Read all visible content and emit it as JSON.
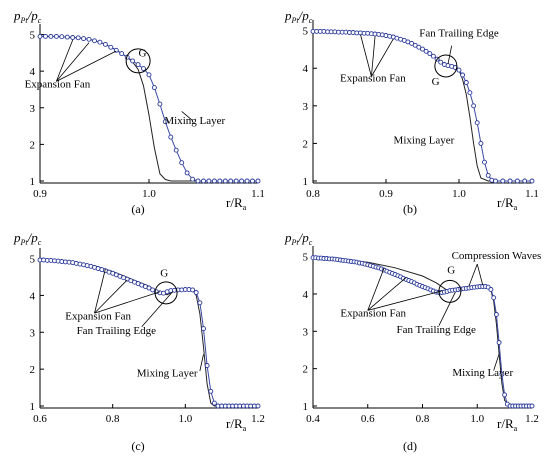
{
  "figure": {
    "y_label": {
      "p1": "p",
      "s1": "Pt",
      "slash": "/",
      "p2": "p",
      "s2": "c"
    },
    "x_label": {
      "r": "r/R",
      "s": "a"
    }
  },
  "chart_data": [
    {
      "id": "a",
      "type": "line",
      "panel_label": "(a)",
      "xlim": [
        0.9,
        1.1
      ],
      "ylim": [
        1,
        5
      ],
      "xticks": [
        "0.9",
        "1.0",
        "1.1"
      ],
      "xtick_values": [
        0.9,
        1.0,
        1.1
      ],
      "yticks": [
        "1",
        "2",
        "3",
        "4",
        "5"
      ],
      "ytick_values": [
        1,
        2,
        3,
        4,
        5
      ],
      "series": [
        {
          "style": "solid",
          "x": [
            0.9,
            0.92,
            0.94,
            0.95,
            0.96,
            0.97,
            0.98,
            0.985,
            0.99,
            0.995,
            1.0,
            1.005,
            1.01,
            1.015,
            1.02,
            1.03,
            1.05,
            1.1
          ],
          "y": [
            4.95,
            4.94,
            4.9,
            4.84,
            4.73,
            4.58,
            4.38,
            4.25,
            4.05,
            3.6,
            2.8,
            1.9,
            1.2,
            1.04,
            1.0,
            1.0,
            1.0,
            1.0
          ]
        },
        {
          "style": "markers",
          "x": [
            0.9,
            0.905,
            0.91,
            0.915,
            0.92,
            0.925,
            0.93,
            0.935,
            0.94,
            0.945,
            0.95,
            0.955,
            0.96,
            0.965,
            0.97,
            0.975,
            0.98,
            0.985,
            0.99,
            0.995,
            1.0,
            1.005,
            1.01,
            1.015,
            1.02,
            1.025,
            1.03,
            1.035,
            1.04,
            1.045,
            1.05,
            1.055,
            1.06,
            1.065,
            1.07,
            1.075,
            1.08,
            1.085,
            1.09,
            1.095,
            1.1
          ],
          "y": [
            4.95,
            4.95,
            4.95,
            4.95,
            4.94,
            4.93,
            4.92,
            4.91,
            4.89,
            4.87,
            4.83,
            4.79,
            4.73,
            4.65,
            4.57,
            4.48,
            4.38,
            4.28,
            4.18,
            4.07,
            3.9,
            3.55,
            3.1,
            2.62,
            2.2,
            1.84,
            1.5,
            1.22,
            1.05,
            1.0,
            1.0,
            1.0,
            1.0,
            1.0,
            1.0,
            1.0,
            1.0,
            1.0,
            1.0,
            1.0,
            1.0
          ]
        }
      ],
      "annotations": [
        {
          "text": "Expansion Fan",
          "x": 0.916,
          "y": 3.55
        },
        {
          "text": "Mixing Layer",
          "x": 1.042,
          "y": 2.55
        },
        {
          "text": "G",
          "x": 0.994,
          "y": 4.4
        }
      ]
    },
    {
      "id": "b",
      "type": "line",
      "panel_label": "(b)",
      "xlim": [
        0.8,
        1.1
      ],
      "ylim": [
        1,
        5
      ],
      "xticks": [
        "0.8",
        "0.9",
        "1.0",
        "1.1"
      ],
      "xtick_values": [
        0.8,
        0.9,
        1.0,
        1.1
      ],
      "yticks": [
        "1",
        "2",
        "3",
        "4",
        "5"
      ],
      "ytick_values": [
        1,
        2,
        3,
        4,
        5
      ],
      "series": [
        {
          "style": "solid",
          "x": [
            0.8,
            0.85,
            0.88,
            0.9,
            0.92,
            0.94,
            0.96,
            0.98,
            0.99,
            1.0,
            1.005,
            1.01,
            1.015,
            1.02,
            1.025,
            1.03,
            1.04,
            1.1
          ],
          "y": [
            4.98,
            4.96,
            4.93,
            4.88,
            4.78,
            4.62,
            4.4,
            4.12,
            4.05,
            3.95,
            3.7,
            3.3,
            2.7,
            2.0,
            1.4,
            1.08,
            1.0,
            1.0
          ]
        },
        {
          "style": "markers",
          "x": [
            0.8,
            0.805,
            0.81,
            0.815,
            0.82,
            0.825,
            0.83,
            0.835,
            0.84,
            0.845,
            0.85,
            0.855,
            0.86,
            0.865,
            0.87,
            0.875,
            0.88,
            0.885,
            0.89,
            0.895,
            0.9,
            0.905,
            0.91,
            0.915,
            0.92,
            0.925,
            0.93,
            0.935,
            0.94,
            0.945,
            0.95,
            0.955,
            0.96,
            0.965,
            0.97,
            0.975,
            0.98,
            0.985,
            0.99,
            0.995,
            1.0,
            1.005,
            1.01,
            1.015,
            1.02,
            1.025,
            1.03,
            1.035,
            1.04,
            1.045,
            1.05,
            1.06,
            1.07,
            1.08,
            1.09,
            1.1
          ],
          "y": [
            4.98,
            4.98,
            4.98,
            4.98,
            4.97,
            4.97,
            4.97,
            4.96,
            4.96,
            4.96,
            4.95,
            4.95,
            4.94,
            4.94,
            4.93,
            4.93,
            4.92,
            4.91,
            4.9,
            4.89,
            4.87,
            4.85,
            4.83,
            4.8,
            4.77,
            4.74,
            4.7,
            4.66,
            4.61,
            4.56,
            4.51,
            4.45,
            4.39,
            4.32,
            4.24,
            4.16,
            4.1,
            4.07,
            4.05,
            4.02,
            3.95,
            3.82,
            3.62,
            3.35,
            3.0,
            2.55,
            2.0,
            1.5,
            1.15,
            1.02,
            1.0,
            1.0,
            1.0,
            1.0,
            1.0,
            1.0
          ]
        }
      ],
      "annotations": [
        {
          "text": "Fan Trailing Edge",
          "x": 1.0,
          "y": 4.85
        },
        {
          "text": "Expansion Fan",
          "x": 0.882,
          "y": 3.65
        },
        {
          "text": "G",
          "x": 0.968,
          "y": 3.55
        },
        {
          "text": "Mixing Layer",
          "x": 0.952,
          "y": 2.0
        }
      ]
    },
    {
      "id": "c",
      "type": "line",
      "panel_label": "(c)",
      "xlim": [
        0.6,
        1.2
      ],
      "ylim": [
        1,
        5
      ],
      "xticks": [
        "0.6",
        "0.8",
        "1.0",
        "1.2"
      ],
      "xtick_values": [
        0.6,
        0.8,
        1.0,
        1.2
      ],
      "yticks": [
        "1",
        "2",
        "3",
        "4",
        "5"
      ],
      "ytick_values": [
        1,
        2,
        3,
        4,
        5
      ],
      "series": [
        {
          "style": "solid",
          "x": [
            0.6,
            0.65,
            0.7,
            0.75,
            0.8,
            0.85,
            0.9,
            0.93,
            0.95,
            0.97,
            1.0,
            1.02,
            1.03,
            1.04,
            1.05,
            1.06,
            1.07,
            1.08,
            1.1,
            1.2
          ],
          "y": [
            4.96,
            4.94,
            4.9,
            4.8,
            4.65,
            4.45,
            4.25,
            4.05,
            4.02,
            4.12,
            4.15,
            4.15,
            4.0,
            3.5,
            2.6,
            1.6,
            1.08,
            1.0,
            1.0,
            1.0
          ]
        },
        {
          "style": "markers",
          "x": [
            0.6,
            0.61,
            0.62,
            0.63,
            0.64,
            0.65,
            0.66,
            0.67,
            0.68,
            0.69,
            0.7,
            0.71,
            0.72,
            0.73,
            0.74,
            0.75,
            0.76,
            0.77,
            0.78,
            0.79,
            0.8,
            0.81,
            0.82,
            0.83,
            0.84,
            0.85,
            0.86,
            0.87,
            0.88,
            0.89,
            0.9,
            0.91,
            0.92,
            0.93,
            0.94,
            0.95,
            0.96,
            0.97,
            0.98,
            0.99,
            1.0,
            1.01,
            1.02,
            1.03,
            1.04,
            1.05,
            1.06,
            1.07,
            1.08,
            1.09,
            1.1,
            1.11,
            1.12,
            1.13,
            1.14,
            1.15,
            1.16,
            1.17,
            1.18,
            1.19,
            1.2
          ],
          "y": [
            4.96,
            4.96,
            4.95,
            4.95,
            4.94,
            4.93,
            4.92,
            4.91,
            4.9,
            4.89,
            4.87,
            4.85,
            4.83,
            4.81,
            4.79,
            4.76,
            4.73,
            4.7,
            4.67,
            4.63,
            4.6,
            4.56,
            4.52,
            4.48,
            4.44,
            4.4,
            4.36,
            4.32,
            4.28,
            4.24,
            4.2,
            4.15,
            4.1,
            4.07,
            4.06,
            4.1,
            4.13,
            4.14,
            4.15,
            4.15,
            4.16,
            4.16,
            4.15,
            4.08,
            3.8,
            3.1,
            2.1,
            1.4,
            1.08,
            1.0,
            1.0,
            1.0,
            1.0,
            1.0,
            1.0,
            1.0,
            1.0,
            1.0,
            1.0,
            1.0,
            1.0
          ]
        }
      ],
      "annotations": [
        {
          "text": "G",
          "x": 0.942,
          "y": 4.52
        },
        {
          "text": "Expansion Fan",
          "x": 0.76,
          "y": 3.35
        },
        {
          "text": "Fan Trailing Edge",
          "x": 0.81,
          "y": 2.95
        },
        {
          "text": "Mixing Layer",
          "x": 0.95,
          "y": 1.8
        }
      ]
    },
    {
      "id": "d",
      "type": "line",
      "panel_label": "(d)",
      "xlim": [
        0.4,
        1.2
      ],
      "ylim": [
        1,
        5
      ],
      "xticks": [
        "0.4",
        "0.6",
        "0.8",
        "1.0",
        "1.2"
      ],
      "xtick_values": [
        0.4,
        0.6,
        0.8,
        1.0,
        1.2
      ],
      "yticks": [
        "1",
        "2",
        "3",
        "4",
        "5"
      ],
      "ytick_values": [
        1,
        2,
        3,
        4,
        5
      ],
      "series": [
        {
          "style": "solid",
          "x": [
            0.4,
            0.5,
            0.6,
            0.7,
            0.8,
            0.85,
            0.88,
            0.9,
            0.93,
            0.96,
            1.0,
            1.03,
            1.05,
            1.06,
            1.07,
            1.08,
            1.09,
            1.1,
            1.12,
            1.2
          ],
          "y": [
            4.97,
            4.93,
            4.85,
            4.7,
            4.48,
            4.3,
            4.15,
            4.05,
            4.1,
            4.15,
            4.18,
            4.2,
            4.1,
            3.8,
            3.2,
            2.4,
            1.6,
            1.15,
            1.0,
            1.0
          ]
        },
        {
          "style": "markers",
          "x": [
            0.4,
            0.41,
            0.42,
            0.43,
            0.44,
            0.45,
            0.46,
            0.47,
            0.48,
            0.49,
            0.5,
            0.51,
            0.52,
            0.53,
            0.54,
            0.55,
            0.56,
            0.57,
            0.58,
            0.59,
            0.6,
            0.61,
            0.62,
            0.63,
            0.64,
            0.65,
            0.66,
            0.67,
            0.68,
            0.69,
            0.7,
            0.71,
            0.72,
            0.73,
            0.74,
            0.75,
            0.76,
            0.77,
            0.78,
            0.79,
            0.8,
            0.81,
            0.82,
            0.83,
            0.84,
            0.85,
            0.86,
            0.87,
            0.88,
            0.89,
            0.9,
            0.91,
            0.92,
            0.93,
            0.94,
            0.95,
            0.96,
            0.97,
            0.98,
            0.99,
            1.0,
            1.01,
            1.02,
            1.03,
            1.04,
            1.05,
            1.06,
            1.07,
            1.08,
            1.09,
            1.1,
            1.11,
            1.12,
            1.13,
            1.14,
            1.15,
            1.16,
            1.17,
            1.18,
            1.19,
            1.2
          ],
          "y": [
            4.97,
            4.97,
            4.96,
            4.96,
            4.95,
            4.95,
            4.94,
            4.94,
            4.93,
            4.92,
            4.91,
            4.9,
            4.89,
            4.88,
            4.87,
            4.86,
            4.85,
            4.83,
            4.82,
            4.8,
            4.78,
            4.76,
            4.74,
            4.72,
            4.7,
            4.67,
            4.64,
            4.61,
            4.58,
            4.55,
            4.52,
            4.49,
            4.46,
            4.42,
            4.39,
            4.36,
            4.33,
            4.3,
            4.26,
            4.23,
            4.2,
            4.17,
            4.14,
            4.11,
            4.08,
            4.05,
            4.04,
            4.04,
            4.05,
            4.07,
            4.09,
            4.1,
            4.11,
            4.12,
            4.13,
            4.14,
            4.15,
            4.16,
            4.17,
            4.18,
            4.19,
            4.2,
            4.2,
            4.2,
            4.18,
            4.12,
            3.9,
            3.45,
            2.7,
            1.85,
            1.3,
            1.05,
            1.0,
            1.0,
            1.0,
            1.0,
            1.0,
            1.0,
            1.0,
            1.0,
            1.0
          ]
        }
      ],
      "annotations": [
        {
          "text": "Compression Waves",
          "x": 1.07,
          "y": 4.93
        },
        {
          "text": "G",
          "x": 0.905,
          "y": 4.55
        },
        {
          "text": "Expansion Fan",
          "x": 0.62,
          "y": 3.4
        },
        {
          "text": "Fan Trailing Edge",
          "x": 0.85,
          "y": 2.95
        },
        {
          "text": "Mixing Layer",
          "x": 1.02,
          "y": 1.8
        }
      ]
    }
  ]
}
